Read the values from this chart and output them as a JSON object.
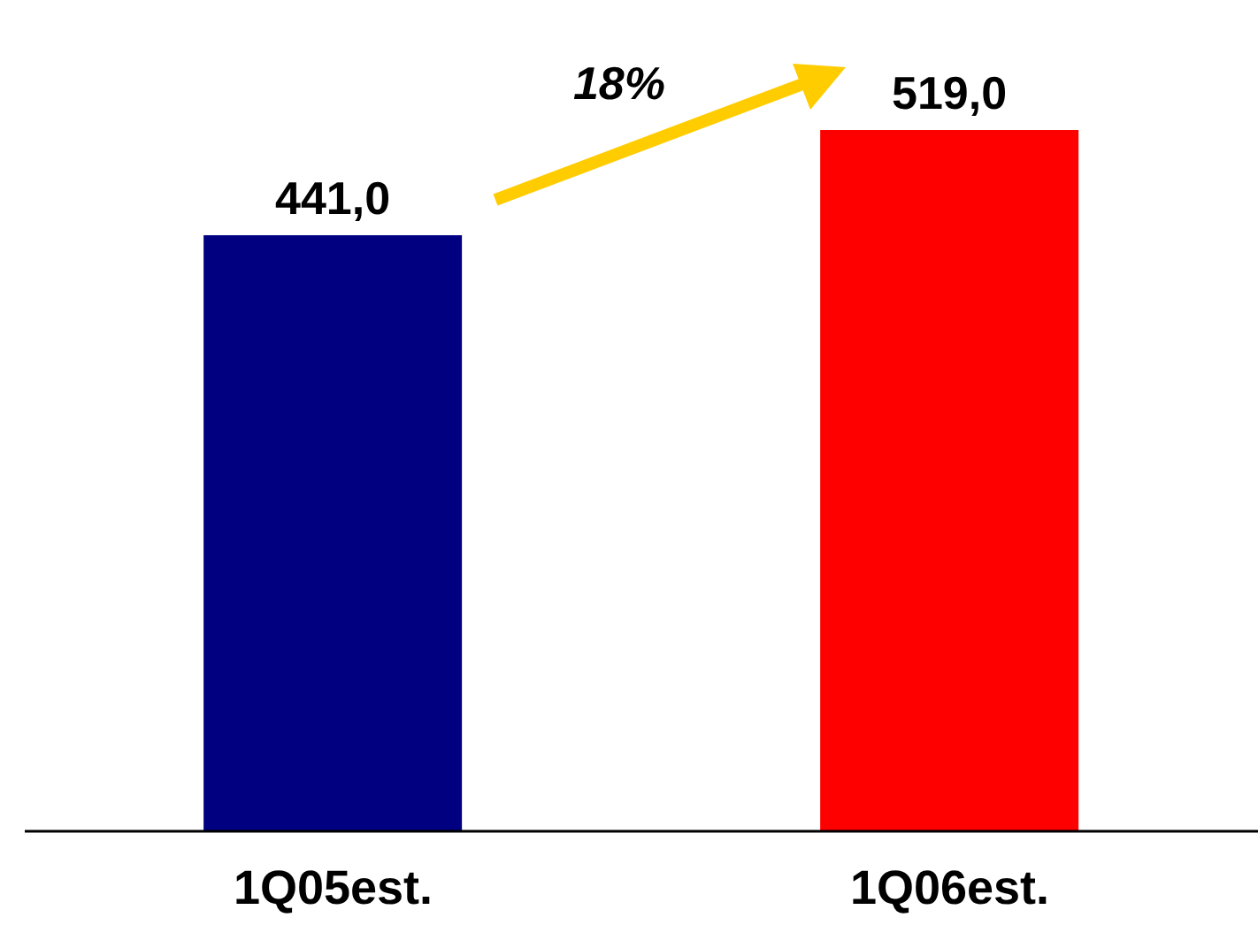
{
  "chart_data": {
    "type": "bar",
    "categories": [
      "1Q05est.",
      "1Q06est."
    ],
    "values": [
      441.0,
      519.0
    ],
    "colors": [
      "#000080",
      "#ff0000"
    ],
    "value_labels": [
      "441,0",
      "519,0"
    ],
    "annotations": [
      "18%"
    ],
    "grid": false,
    "legend": false
  }
}
